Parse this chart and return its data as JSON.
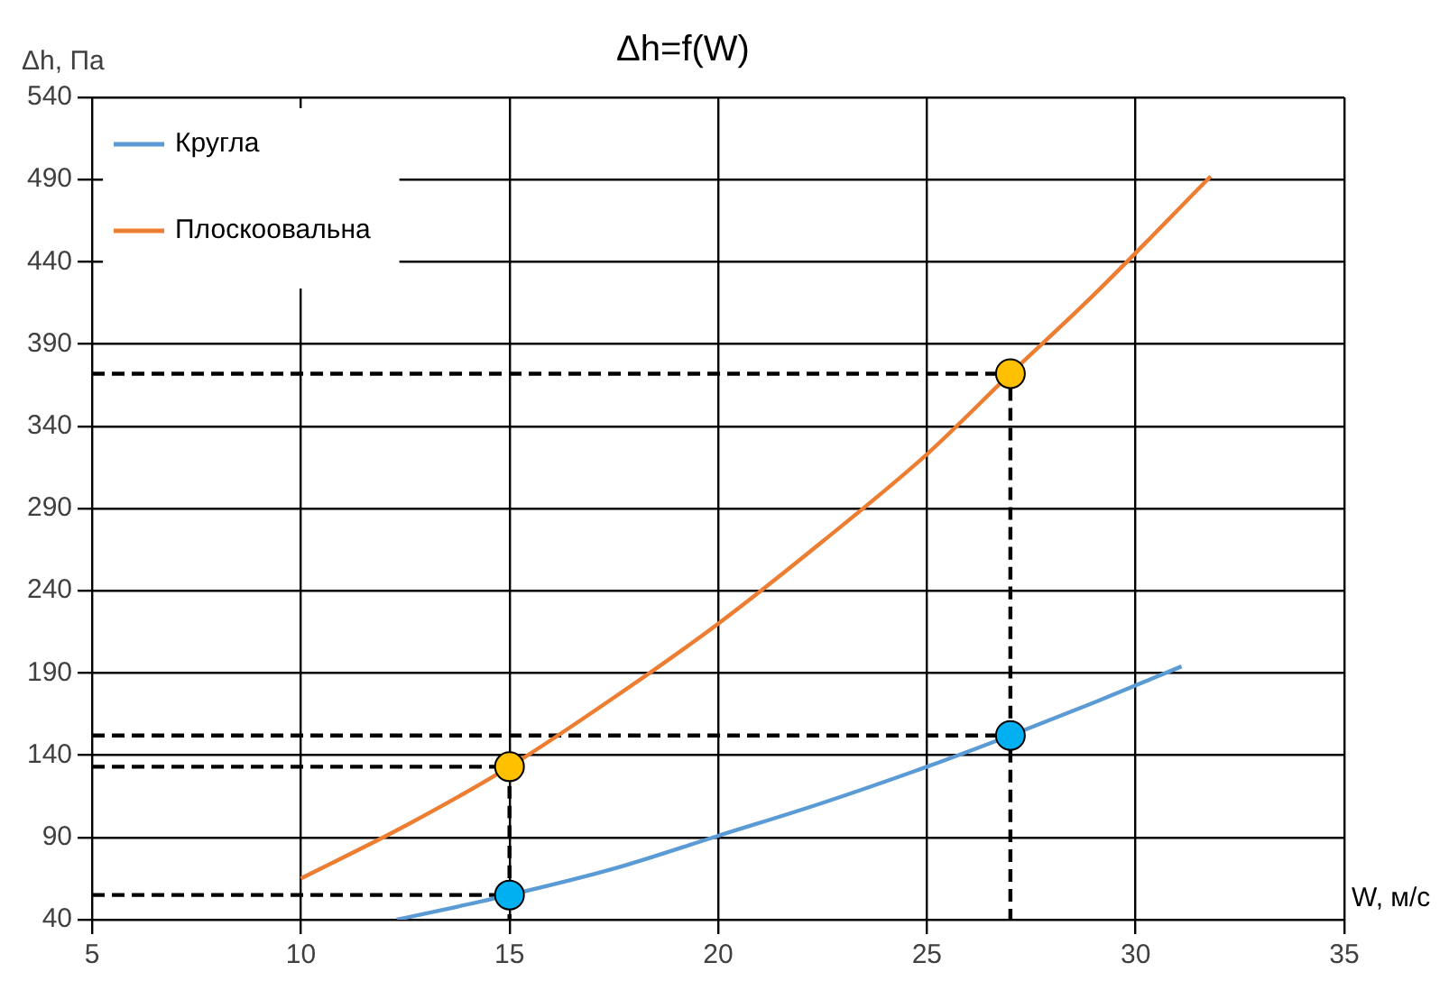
{
  "chart_data": {
    "type": "line",
    "title": "Δh=f(W)",
    "xlabel": "W, м/с",
    "ylabel": "Δh, Па",
    "xlim": [
      5,
      35
    ],
    "xticks": [
      5,
      10,
      15,
      20,
      25,
      30,
      35
    ],
    "ylim": [
      40,
      540
    ],
    "yticks": [
      40,
      90,
      140,
      190,
      240,
      290,
      340,
      390,
      440,
      490,
      540
    ],
    "grid": true,
    "legend": "top left",
    "series": [
      {
        "name": "Кругла",
        "color": "#5b9bd5",
        "marker": "none",
        "line_style": "solid",
        "x": [
          12.3,
          15,
          17.5,
          20,
          22.5,
          25,
          27,
          29,
          31.1
        ],
        "values": [
          40,
          55,
          71,
          91,
          111,
          133,
          152,
          172,
          194
        ]
      },
      {
        "name": "Плоскоовальна",
        "color": "#ed7d31",
        "marker": "none",
        "line_style": "solid",
        "x": [
          10,
          12.5,
          15,
          17.5,
          20,
          22.5,
          25,
          27,
          29,
          31.8
        ],
        "values": [
          65,
          97,
          133,
          175,
          220,
          270,
          323,
          372,
          420,
          492
        ]
      },
      {
        "color": "#000000",
        "marker": "none",
        "line_style": "dashed",
        "x": [
          5,
          15,
          15
        ],
        "values": [
          55,
          55,
          40
        ]
      },
      {
        "color": "#000000",
        "marker": "none",
        "line_style": "dashed",
        "x": [
          5,
          15,
          15
        ],
        "values": [
          133,
          133,
          55
        ]
      },
      {
        "color": "#000000",
        "marker": "none",
        "line_style": "dashed",
        "x": [
          5,
          27,
          27
        ],
        "values": [
          152,
          152,
          40
        ]
      },
      {
        "color": "#000000",
        "marker": "none",
        "line_style": "dashed",
        "x": [
          5,
          27,
          27
        ],
        "values": [
          372,
          372,
          152
        ]
      },
      {
        "type": "scatter",
        "color": "#00b0f0",
        "marker": "circle",
        "x": [
          15,
          27
        ],
        "values": [
          55,
          152
        ]
      },
      {
        "type": "scatter",
        "color": "#ffc000",
        "marker": "circle",
        "x": [
          15,
          27
        ],
        "values": [
          133,
          372
        ]
      }
    ]
  }
}
